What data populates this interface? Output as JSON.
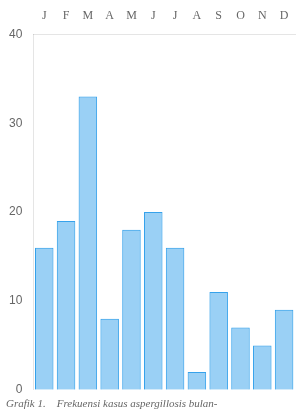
{
  "chart_data": {
    "type": "bar",
    "title": "Grafik 1.    Frekuensi kasus aspergillosis bulan-",
    "categories": [
      "J",
      "F",
      "M",
      "A",
      "M",
      "J",
      "J",
      "A",
      "S",
      "O",
      "N",
      "D"
    ],
    "values": [
      16,
      19,
      33,
      8,
      18,
      20,
      16,
      2,
      11,
      7,
      5,
      9
    ],
    "ylim": [
      0,
      40
    ],
    "yticks": [
      0,
      10,
      20,
      30,
      40
    ],
    "grid": false
  }
}
